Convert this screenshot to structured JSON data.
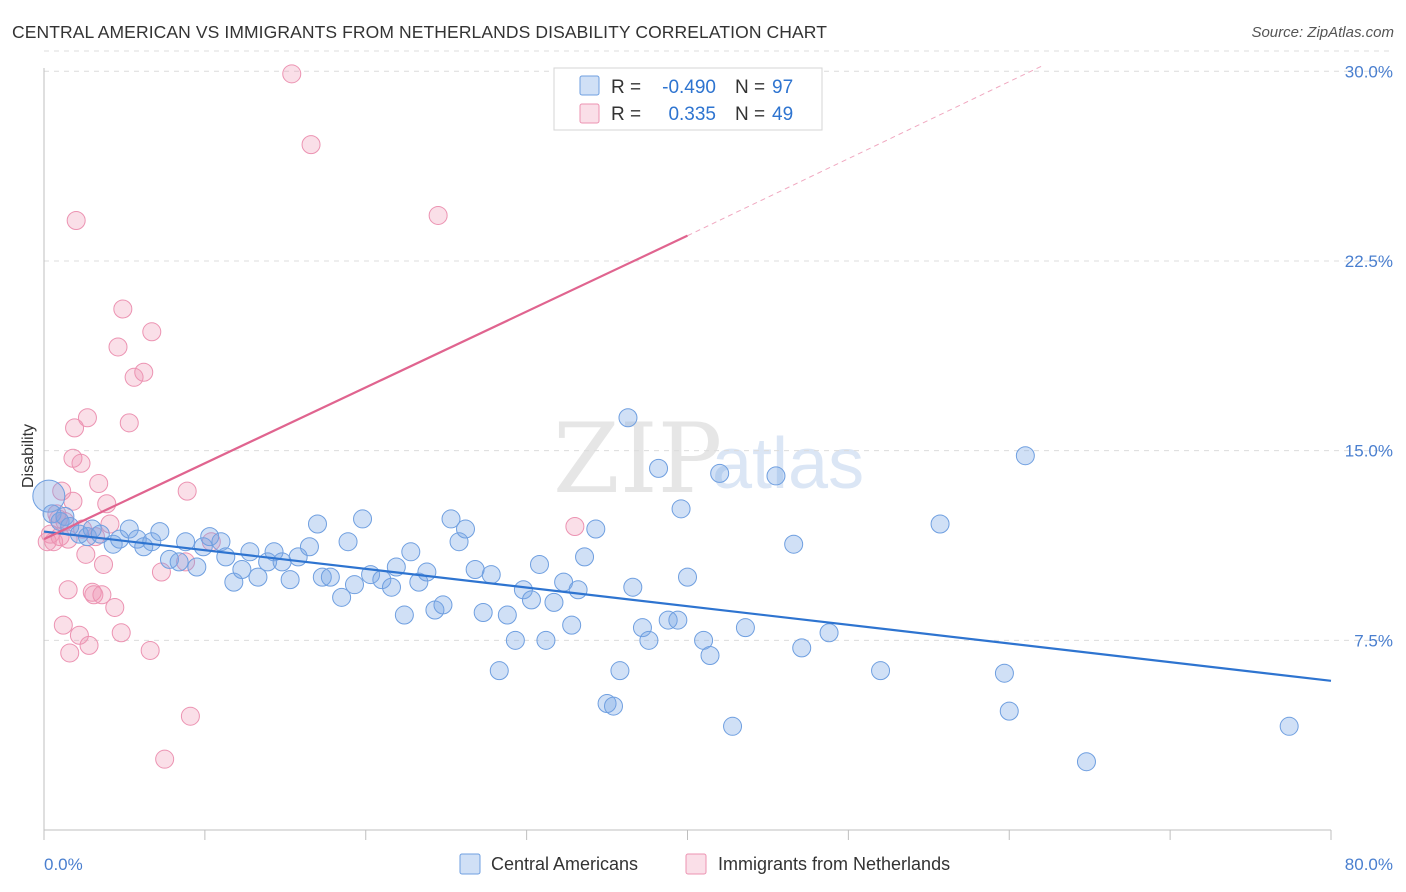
{
  "header": {
    "title": "CENTRAL AMERICAN VS IMMIGRANTS FROM NETHERLANDS DISABILITY CORRELATION CHART",
    "source": "Source: ZipAtlas.com"
  },
  "watermark": {
    "zip": "ZIP",
    "atlas": "atlas"
  },
  "colors": {
    "blue": "#2e74d0",
    "blue_fill": "rgba(120,165,230,0.35)",
    "blue_stroke": "#6f9fe0",
    "pink": "#e0648f",
    "pink_fill": "rgba(240,150,180,0.30)",
    "pink_stroke": "#ec93b2",
    "value_text": "#2e74d0"
  },
  "legend": {
    "rows": [
      {
        "r_label": "R =",
        "r_value": "-0.490",
        "n_label": "N =",
        "n_value": "97"
      },
      {
        "r_label": "R =",
        "r_value": "0.335",
        "n_label": "N =",
        "n_value": "49"
      }
    ]
  },
  "chart_data": {
    "type": "scatter",
    "title": "CENTRAL AMERICAN VS IMMIGRANTS FROM NETHERLANDS DISABILITY CORRELATION CHART",
    "xlabel": "",
    "ylabel": "Disability",
    "xlim": [
      0,
      80
    ],
    "ylim": [
      0,
      31
    ],
    "x_tick_labels": [
      "0.0%",
      "80.0%"
    ],
    "y_ticks": [
      7.5,
      15.0,
      22.5,
      30.0
    ],
    "y_tick_labels": [
      "7.5%",
      "15.0%",
      "22.5%",
      "30.0%"
    ],
    "grid": true,
    "legend_position": "top-center",
    "series": [
      {
        "name": "Central Americans",
        "r": -0.49,
        "n": 97,
        "trend": {
          "x0": 0,
          "y0": 11.8,
          "x1": 80,
          "y1": 5.9
        },
        "points": [
          [
            0.3,
            13.2
          ],
          [
            0.5,
            12.5
          ],
          [
            1.0,
            12.2
          ],
          [
            1.3,
            12.4
          ],
          [
            1.6,
            12.0
          ],
          [
            2.2,
            11.7
          ],
          [
            2.7,
            11.6
          ],
          [
            3.0,
            11.9
          ],
          [
            3.5,
            11.7
          ],
          [
            4.3,
            11.3
          ],
          [
            4.7,
            11.5
          ],
          [
            5.3,
            11.9
          ],
          [
            5.8,
            11.5
          ],
          [
            6.2,
            11.2
          ],
          [
            6.7,
            11.4
          ],
          [
            7.2,
            11.8
          ],
          [
            7.8,
            10.7
          ],
          [
            8.4,
            10.6
          ],
          [
            8.8,
            11.4
          ],
          [
            9.5,
            10.4
          ],
          [
            9.9,
            11.2
          ],
          [
            10.3,
            11.6
          ],
          [
            11.0,
            11.4
          ],
          [
            11.3,
            10.8
          ],
          [
            11.8,
            9.8
          ],
          [
            12.3,
            10.3
          ],
          [
            12.8,
            11.0
          ],
          [
            13.3,
            10.0
          ],
          [
            13.9,
            10.6
          ],
          [
            14.3,
            11.0
          ],
          [
            14.8,
            10.6
          ],
          [
            15.3,
            9.9
          ],
          [
            15.8,
            10.8
          ],
          [
            16.5,
            11.2
          ],
          [
            17.0,
            12.1
          ],
          [
            17.3,
            10.0
          ],
          [
            17.8,
            10.0
          ],
          [
            18.5,
            9.2
          ],
          [
            18.9,
            11.4
          ],
          [
            19.3,
            9.7
          ],
          [
            19.8,
            12.3
          ],
          [
            20.3,
            10.1
          ],
          [
            21.0,
            9.9
          ],
          [
            21.6,
            9.6
          ],
          [
            21.9,
            10.4
          ],
          [
            22.4,
            8.5
          ],
          [
            22.8,
            11.0
          ],
          [
            23.3,
            9.8
          ],
          [
            23.8,
            10.2
          ],
          [
            24.3,
            8.7
          ],
          [
            24.8,
            8.9
          ],
          [
            25.3,
            12.3
          ],
          [
            25.8,
            11.4
          ],
          [
            26.2,
            11.9
          ],
          [
            26.8,
            10.3
          ],
          [
            27.3,
            8.6
          ],
          [
            27.8,
            10.1
          ],
          [
            28.3,
            6.3
          ],
          [
            28.8,
            8.5
          ],
          [
            29.3,
            7.5
          ],
          [
            29.8,
            9.5
          ],
          [
            30.3,
            9.1
          ],
          [
            30.8,
            10.5
          ],
          [
            31.2,
            7.5
          ],
          [
            31.7,
            9.0
          ],
          [
            32.3,
            9.8
          ],
          [
            32.8,
            8.1
          ],
          [
            33.2,
            9.5
          ],
          [
            33.6,
            10.8
          ],
          [
            34.3,
            11.9
          ],
          [
            35.0,
            5.0
          ],
          [
            35.4,
            4.9
          ],
          [
            35.8,
            6.3
          ],
          [
            36.3,
            16.3
          ],
          [
            36.6,
            9.6
          ],
          [
            37.2,
            8.0
          ],
          [
            37.6,
            7.5
          ],
          [
            38.2,
            14.3
          ],
          [
            38.8,
            8.3
          ],
          [
            39.4,
            8.3
          ],
          [
            39.6,
            12.7
          ],
          [
            40.0,
            10.0
          ],
          [
            41.0,
            7.5
          ],
          [
            41.4,
            6.9
          ],
          [
            42.0,
            14.1
          ],
          [
            42.8,
            4.1
          ],
          [
            43.6,
            8.0
          ],
          [
            45.5,
            14.0
          ],
          [
            46.6,
            11.3
          ],
          [
            47.1,
            7.2
          ],
          [
            48.8,
            7.8
          ],
          [
            52.0,
            6.3
          ],
          [
            55.7,
            12.1
          ],
          [
            59.7,
            6.2
          ],
          [
            60.0,
            4.7
          ],
          [
            61.0,
            14.8
          ],
          [
            64.8,
            2.7
          ],
          [
            77.4,
            4.1
          ]
        ]
      },
      {
        "name": "Immigrants from Netherlands",
        "r": 0.335,
        "n": 49,
        "trend": {
          "x0": 0,
          "y0": 11.5,
          "x1": 40,
          "y1": 23.5,
          "dash_x1": 62,
          "dash_y1": 30.2
        },
        "points": [
          [
            0.2,
            11.4
          ],
          [
            0.4,
            11.7
          ],
          [
            0.6,
            11.4
          ],
          [
            0.9,
            12.3
          ],
          [
            1.1,
            13.4
          ],
          [
            1.3,
            12.2
          ],
          [
            1.5,
            11.5
          ],
          [
            1.8,
            13.0
          ],
          [
            1.2,
            8.1
          ],
          [
            1.5,
            9.5
          ],
          [
            1.6,
            7.0
          ],
          [
            1.8,
            14.7
          ],
          [
            1.9,
            15.9
          ],
          [
            2.0,
            24.1
          ],
          [
            2.2,
            7.7
          ],
          [
            2.3,
            14.5
          ],
          [
            2.6,
            10.9
          ],
          [
            2.7,
            16.3
          ],
          [
            2.8,
            7.3
          ],
          [
            3.0,
            9.4
          ],
          [
            3.1,
            9.3
          ],
          [
            3.2,
            11.6
          ],
          [
            3.4,
            13.7
          ],
          [
            3.7,
            10.5
          ],
          [
            3.9,
            12.9
          ],
          [
            4.1,
            12.1
          ],
          [
            4.4,
            8.8
          ],
          [
            4.6,
            19.1
          ],
          [
            4.8,
            7.8
          ],
          [
            4.9,
            20.6
          ],
          [
            5.3,
            16.1
          ],
          [
            5.6,
            17.9
          ],
          [
            6.2,
            18.1
          ],
          [
            6.6,
            7.1
          ],
          [
            6.7,
            19.7
          ],
          [
            7.3,
            10.2
          ],
          [
            7.5,
            2.8
          ],
          [
            8.8,
            10.6
          ],
          [
            8.9,
            13.4
          ],
          [
            9.1,
            4.5
          ],
          [
            10.4,
            11.4
          ],
          [
            15.4,
            29.9
          ],
          [
            16.6,
            27.1
          ],
          [
            24.5,
            24.3
          ],
          [
            33.0,
            12.0
          ],
          [
            0.8,
            12.5
          ],
          [
            2.4,
            11.9
          ],
          [
            3.6,
            9.3
          ],
          [
            1.0,
            11.6
          ]
        ]
      }
    ]
  },
  "bottom_legend": {
    "items": [
      {
        "label": "Central Americans"
      },
      {
        "label": "Immigrants from Netherlands"
      }
    ]
  }
}
